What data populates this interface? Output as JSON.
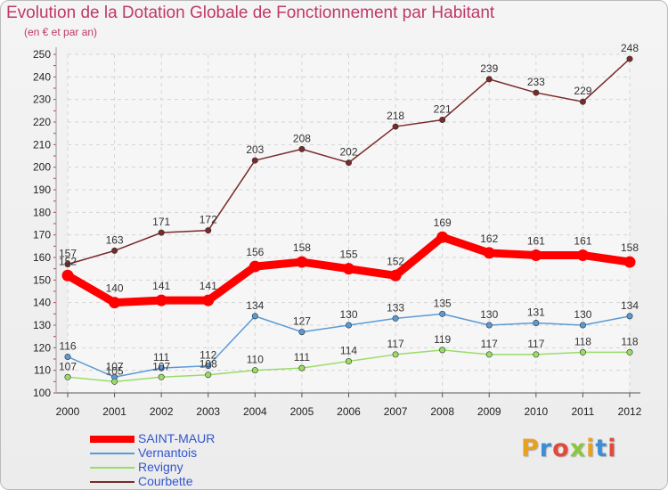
{
  "title": "Evolution de la Dotation Globale de Fonctionnement par Habitant",
  "subtitle": "(en € et par an)",
  "logo_text": "Proxiti",
  "logo_colors": [
    "#e8a020",
    "#3a8fd8",
    "#e04a3a",
    "#8cc63f",
    "#e8a020",
    "#3a8fd8",
    "#e04a3a"
  ],
  "chart_data": {
    "type": "line",
    "x": [
      "2000",
      "2001",
      "2002",
      "2003",
      "2004",
      "2005",
      "2006",
      "2007",
      "2008",
      "2009",
      "2010",
      "2011",
      "2012"
    ],
    "ylim": [
      100,
      250
    ],
    "yticks": [
      100,
      110,
      120,
      130,
      140,
      150,
      160,
      170,
      180,
      190,
      200,
      210,
      220,
      230,
      240,
      250
    ],
    "grid": true,
    "legend_position": "bottom-left",
    "series": [
      {
        "name": "SAINT-MAUR",
        "color": "#ff0000",
        "values": [
          152,
          140,
          141,
          141,
          156,
          158,
          155,
          152,
          169,
          162,
          161,
          161,
          158
        ]
      },
      {
        "name": "Vernantois",
        "color": "#5b9bd5",
        "values": [
          116,
          107,
          111,
          112,
          134,
          127,
          130,
          133,
          135,
          130,
          131,
          130,
          134
        ]
      },
      {
        "name": "Revigny",
        "color": "#99dd66",
        "values": [
          107,
          105,
          107,
          108,
          110,
          111,
          114,
          117,
          119,
          117,
          117,
          118,
          118
        ]
      },
      {
        "name": "Courbette",
        "color": "#7a2a2a",
        "values": [
          157,
          163,
          171,
          172,
          203,
          208,
          202,
          218,
          221,
          239,
          233,
          229,
          248
        ]
      }
    ]
  }
}
